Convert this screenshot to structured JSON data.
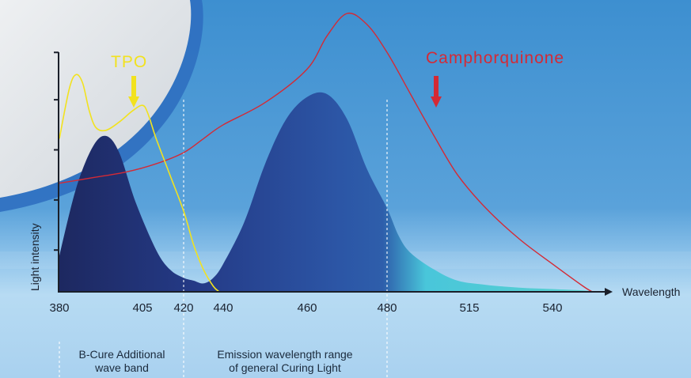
{
  "colors": {
    "tpo": "#f2e21f",
    "camphorquinone": "#d42a35",
    "emission_dark": "#1d2860",
    "emission_mid": "#2c56a6",
    "emission_cyan": "#49c6da",
    "axis": "#1a1f2a",
    "guide": "#ffffff"
  },
  "chart_data": {
    "type": "line",
    "xlabel": "Wavelength",
    "ylabel": "Light intensity",
    "x_ticks": [
      380,
      405,
      420,
      440,
      460,
      480,
      515,
      540
    ],
    "reference_lines": [
      420,
      480
    ],
    "grid": false,
    "series": [
      {
        "name": "TPO",
        "points": [
          [
            380,
            0.55
          ],
          [
            383,
            0.73
          ],
          [
            385,
            0.78
          ],
          [
            387,
            0.75
          ],
          [
            389,
            0.65
          ],
          [
            391,
            0.59
          ],
          [
            394,
            0.58
          ],
          [
            398,
            0.61
          ],
          [
            402,
            0.65
          ],
          [
            405,
            0.67
          ],
          [
            407,
            0.64
          ],
          [
            410,
            0.55
          ],
          [
            415,
            0.42
          ],
          [
            420,
            0.29
          ],
          [
            425,
            0.17
          ],
          [
            430,
            0.08
          ],
          [
            435,
            0.02
          ],
          [
            438,
            0.0
          ]
        ]
      },
      {
        "name": "Camphorquinone",
        "points": [
          [
            380,
            0.39
          ],
          [
            390,
            0.41
          ],
          [
            400,
            0.43
          ],
          [
            410,
            0.46
          ],
          [
            420,
            0.5
          ],
          [
            430,
            0.55
          ],
          [
            440,
            0.6
          ],
          [
            450,
            0.68
          ],
          [
            460,
            0.8
          ],
          [
            465,
            0.92
          ],
          [
            470,
            1.0
          ],
          [
            475,
            0.96
          ],
          [
            480,
            0.86
          ],
          [
            490,
            0.71
          ],
          [
            500,
            0.56
          ],
          [
            510,
            0.42
          ],
          [
            520,
            0.3
          ],
          [
            530,
            0.19
          ],
          [
            540,
            0.1
          ],
          [
            550,
            0.02
          ],
          [
            553,
            0.0
          ]
        ]
      },
      {
        "name": "Emission",
        "points": [
          [
            380,
            0.13
          ],
          [
            385,
            0.37
          ],
          [
            390,
            0.52
          ],
          [
            394,
            0.56
          ],
          [
            398,
            0.5
          ],
          [
            403,
            0.32
          ],
          [
            410,
            0.15
          ],
          [
            415,
            0.08
          ],
          [
            420,
            0.05
          ],
          [
            425,
            0.04
          ],
          [
            430,
            0.03
          ],
          [
            435,
            0.05
          ],
          [
            440,
            0.1
          ],
          [
            445,
            0.25
          ],
          [
            450,
            0.46
          ],
          [
            455,
            0.62
          ],
          [
            460,
            0.7
          ],
          [
            465,
            0.71
          ],
          [
            470,
            0.62
          ],
          [
            475,
            0.44
          ],
          [
            480,
            0.3
          ],
          [
            485,
            0.2
          ],
          [
            490,
            0.14
          ],
          [
            500,
            0.08
          ],
          [
            510,
            0.04
          ],
          [
            520,
            0.025
          ],
          [
            530,
            0.015
          ],
          [
            540,
            0.01
          ],
          [
            550,
            0.005
          ],
          [
            555,
            0.0
          ]
        ]
      }
    ],
    "curve_labels": {
      "tpo": "TPO",
      "camphorquinone": "Camphorquinone"
    },
    "band_notes": [
      {
        "lines": [
          "B-Cure Additional",
          "wave band"
        ],
        "x_range": [
          380,
          420
        ]
      },
      {
        "lines": [
          "Emission wavelength range",
          "of general Curing Light"
        ],
        "x_range": [
          420,
          480
        ]
      }
    ]
  }
}
